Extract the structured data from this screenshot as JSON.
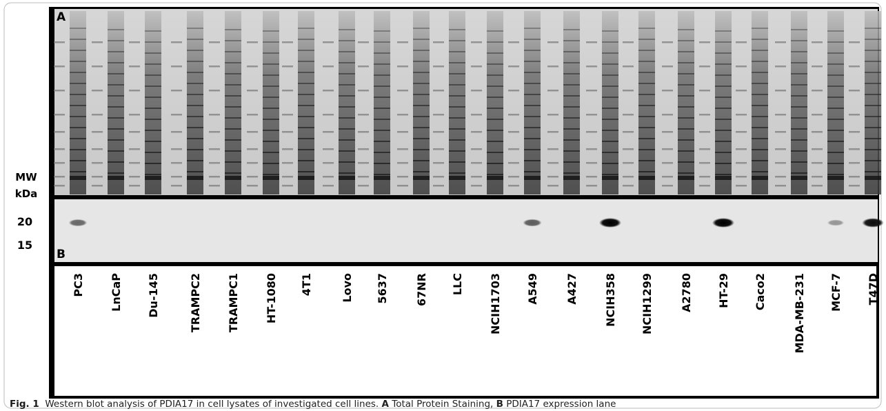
{
  "figure": {
    "panel_a": "A",
    "panel_b": "B",
    "mw_label": "MW",
    "unit_label": "kDa",
    "mw_markers": [
      "20",
      "15"
    ],
    "lanes": [
      "PC3",
      "LnCaP",
      "Du-145",
      "TRAMPC2",
      "TRAMPC1",
      "HT-1080",
      "4T1",
      "Lovo",
      "5637",
      "67NR",
      "LLC",
      "NCIH1703",
      "A549",
      "A427",
      "NCIH358",
      "NCIH1299",
      "A2780",
      "HT-29",
      "Caco2",
      "MDA-MB-231",
      "MCF-7",
      "T47D"
    ],
    "caption": {
      "label": "Fig. 1",
      "text": "Western blot analysis of PDIA17 in cell lysates of investigated cell lines.",
      "a_key": "A",
      "a_text": "Total Protein Staining,",
      "b_key": "B",
      "b_text": "PDIA17 expression lane"
    }
  }
}
